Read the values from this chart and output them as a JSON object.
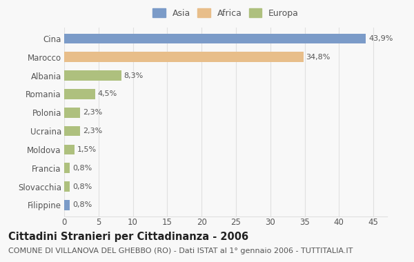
{
  "categories": [
    "Filippine",
    "Slovacchia",
    "Francia",
    "Moldova",
    "Ucraina",
    "Polonia",
    "Romania",
    "Albania",
    "Marocco",
    "Cina"
  ],
  "values": [
    0.8,
    0.8,
    0.8,
    1.5,
    2.3,
    2.3,
    4.5,
    8.3,
    34.8,
    43.9
  ],
  "labels": [
    "0,8%",
    "0,8%",
    "0,8%",
    "1,5%",
    "2,3%",
    "2,3%",
    "4,5%",
    "8,3%",
    "34,8%",
    "43,9%"
  ],
  "colors": [
    "#7b9bc8",
    "#aec07e",
    "#aec07e",
    "#aec07e",
    "#aec07e",
    "#aec07e",
    "#aec07e",
    "#aec07e",
    "#e8be8a",
    "#7b9bc8"
  ],
  "legend_labels": [
    "Asia",
    "Africa",
    "Europa"
  ],
  "legend_colors": [
    "#7b9bc8",
    "#e8be8a",
    "#aec07e"
  ],
  "title_bold": "Cittadini Stranieri per Cittadinanza - 2006",
  "subtitle": "COMUNE DI VILLANOVA DEL GHEBBO (RO) - Dati ISTAT al 1° gennaio 2006 - TUTTITALIA.IT",
  "xlim": [
    0,
    47
  ],
  "xticks": [
    0,
    5,
    10,
    15,
    20,
    25,
    30,
    35,
    40,
    45
  ],
  "background_color": "#f8f8f8",
  "bar_height": 0.55,
  "grid_color": "#e0e0e0",
  "text_color": "#555555",
  "label_fontsize": 8,
  "title_fontsize": 10.5,
  "subtitle_fontsize": 8,
  "tick_fontsize": 8.5,
  "category_fontsize": 8.5
}
